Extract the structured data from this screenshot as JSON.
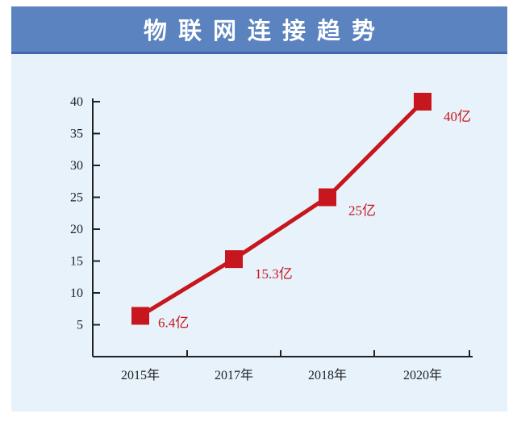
{
  "chart_data": {
    "type": "line",
    "title": "物联网连接趋势",
    "categories": [
      "2015年",
      "2017年",
      "2018年",
      "2020年"
    ],
    "series": [
      {
        "values": [
          6.4,
          15.3,
          25,
          40
        ],
        "data_labels": [
          "6.4亿",
          "15.3亿",
          "25亿",
          "40亿"
        ]
      }
    ],
    "y_ticks": [
      5,
      10,
      15,
      20,
      25,
      30,
      35,
      40
    ],
    "ylim": [
      0,
      40
    ],
    "xlabel": "",
    "ylabel": "",
    "grid": false,
    "legend": "none"
  },
  "colors": {
    "title_bar": "#5b83c0",
    "title_text": "#ffffff",
    "background": "#e7f2fa",
    "series": "#c8161e",
    "label": "#c8161e",
    "axis": "#222222"
  }
}
